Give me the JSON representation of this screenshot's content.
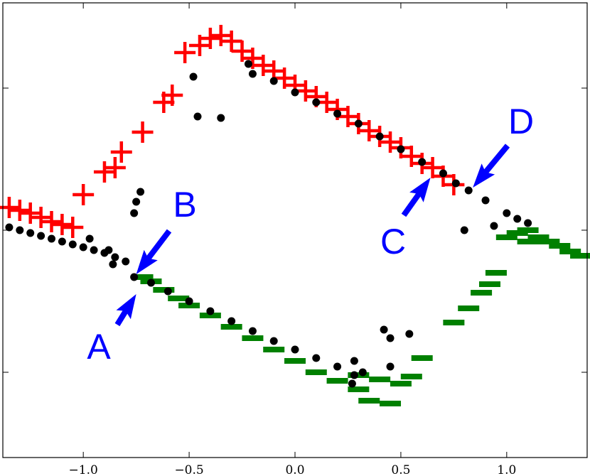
{
  "chart_data": {
    "type": "scatter",
    "title": "",
    "xlabel": "",
    "ylabel": "",
    "xlim": [
      -1.38,
      1.38
    ],
    "ylim": [
      -1.6,
      1.6
    ],
    "x_ticks": [
      {
        "value": -1.0,
        "label": "−1.0"
      },
      {
        "value": -0.5,
        "label": "−0.5"
      },
      {
        "value": 0.0,
        "label": "0.0"
      },
      {
        "value": 0.5,
        "label": "0.5"
      },
      {
        "value": 1.0,
        "label": "1.0"
      }
    ],
    "y_ticks": [
      -1.0,
      0.0,
      1.0
    ],
    "y_tick_labels_shown": false,
    "grid": false,
    "series": [
      {
        "marker": "circle",
        "color": "#000000",
        "points": [
          [
            -1.35,
            0.02
          ],
          [
            -1.3,
            0.0
          ],
          [
            -1.25,
            -0.02
          ],
          [
            -1.2,
            -0.04
          ],
          [
            -1.15,
            -0.06
          ],
          [
            -1.1,
            -0.08
          ],
          [
            -1.05,
            -0.1
          ],
          [
            -1.0,
            -0.12
          ],
          [
            -0.95,
            -0.14
          ],
          [
            -0.9,
            -0.16
          ],
          [
            -0.85,
            -0.19
          ],
          [
            -0.8,
            -0.22
          ],
          [
            -0.76,
            -0.33
          ],
          [
            -0.68,
            -0.37
          ],
          [
            -0.6,
            -0.43
          ],
          [
            -0.5,
            -0.5
          ],
          [
            -0.4,
            -0.57
          ],
          [
            -0.3,
            -0.64
          ],
          [
            -0.2,
            -0.71
          ],
          [
            -0.1,
            -0.78
          ],
          [
            0.0,
            -0.84
          ],
          [
            0.1,
            -0.9
          ],
          [
            0.2,
            -0.96
          ],
          [
            0.28,
            -1.02
          ],
          [
            0.32,
            -1.0
          ],
          [
            -0.97,
            -0.06
          ],
          [
            -0.88,
            -0.14
          ],
          [
            -0.86,
            -0.24
          ],
          [
            -0.76,
            0.12
          ],
          [
            -0.75,
            0.2
          ],
          [
            -0.73,
            0.27
          ],
          [
            -0.48,
            1.08
          ],
          [
            -0.46,
            0.8
          ],
          [
            -0.35,
            0.79
          ],
          [
            -0.22,
            1.17
          ],
          [
            -0.2,
            1.1
          ],
          [
            -0.1,
            1.05
          ],
          [
            0.0,
            0.97
          ],
          [
            0.1,
            0.9
          ],
          [
            0.2,
            0.82
          ],
          [
            0.3,
            0.75
          ],
          [
            0.4,
            0.66
          ],
          [
            0.5,
            0.57
          ],
          [
            0.6,
            0.48
          ],
          [
            0.7,
            0.4
          ],
          [
            0.76,
            0.33
          ],
          [
            0.82,
            0.28
          ],
          [
            0.9,
            0.21
          ],
          [
            1.0,
            0.12
          ],
          [
            1.05,
            0.08
          ],
          [
            1.1,
            0.05
          ],
          [
            0.94,
            0.03
          ],
          [
            0.8,
            0.0
          ],
          [
            0.28,
            -0.92
          ],
          [
            0.27,
            -1.08
          ],
          [
            0.42,
            -0.7
          ],
          [
            0.45,
            -0.76
          ],
          [
            0.54,
            -0.73
          ],
          [
            0.45,
            -0.96
          ]
        ]
      },
      {
        "marker": "plus",
        "color": "#ff0000",
        "points": [
          [
            -1.35,
            0.16
          ],
          [
            -1.3,
            0.14
          ],
          [
            -1.25,
            0.12
          ],
          [
            -1.2,
            0.09
          ],
          [
            -1.15,
            0.06
          ],
          [
            -1.1,
            0.04
          ],
          [
            -1.05,
            0.02
          ],
          [
            -1.0,
            0.25
          ],
          [
            -0.9,
            0.41
          ],
          [
            -0.85,
            0.44
          ],
          [
            -0.82,
            0.55
          ],
          [
            -0.72,
            0.69
          ],
          [
            -0.62,
            0.9
          ],
          [
            -0.58,
            0.95
          ],
          [
            -0.52,
            1.25
          ],
          [
            -0.45,
            1.3
          ],
          [
            -0.4,
            1.35
          ],
          [
            -0.35,
            1.37
          ],
          [
            -0.3,
            1.33
          ],
          [
            -0.25,
            1.26
          ],
          [
            -0.2,
            1.21
          ],
          [
            -0.15,
            1.16
          ],
          [
            -0.1,
            1.12
          ],
          [
            -0.05,
            1.07
          ],
          [
            0.0,
            1.02
          ],
          [
            0.05,
            0.98
          ],
          [
            0.1,
            0.94
          ],
          [
            0.15,
            0.9
          ],
          [
            0.2,
            0.85
          ],
          [
            0.25,
            0.8
          ],
          [
            0.3,
            0.75
          ],
          [
            0.35,
            0.7
          ],
          [
            0.4,
            0.66
          ],
          [
            0.45,
            0.62
          ],
          [
            0.5,
            0.58
          ],
          [
            0.55,
            0.52
          ],
          [
            0.6,
            0.47
          ],
          [
            0.65,
            0.44
          ],
          [
            0.7,
            0.38
          ],
          [
            0.75,
            0.32
          ]
        ]
      },
      {
        "marker": "dash",
        "color": "#008000",
        "points": [
          [
            -0.72,
            -0.33
          ],
          [
            -0.68,
            -0.36
          ],
          [
            -0.62,
            -0.42
          ],
          [
            -0.55,
            -0.48
          ],
          [
            -0.5,
            -0.53
          ],
          [
            -0.4,
            -0.6
          ],
          [
            -0.3,
            -0.68
          ],
          [
            -0.2,
            -0.76
          ],
          [
            -0.1,
            -0.84
          ],
          [
            0.0,
            -0.92
          ],
          [
            0.1,
            -1.0
          ],
          [
            0.2,
            -1.06
          ],
          [
            0.3,
            -1.12
          ],
          [
            0.35,
            -1.2
          ],
          [
            0.45,
            -1.22
          ],
          [
            0.3,
            -1.02
          ],
          [
            0.4,
            -1.05
          ],
          [
            0.5,
            -1.08
          ],
          [
            0.55,
            -1.03
          ],
          [
            0.6,
            -0.9
          ],
          [
            0.75,
            -0.65
          ],
          [
            0.82,
            -0.55
          ],
          [
            0.88,
            -0.44
          ],
          [
            0.92,
            -0.38
          ],
          [
            0.95,
            -0.3
          ],
          [
            1.0,
            -0.05
          ],
          [
            1.05,
            -0.02
          ],
          [
            1.1,
            0.0
          ],
          [
            1.15,
            -0.05
          ],
          [
            1.2,
            -0.08
          ],
          [
            1.25,
            -0.11
          ],
          [
            1.3,
            -0.15
          ],
          [
            1.35,
            -0.18
          ],
          [
            1.1,
            -0.08
          ]
        ]
      }
    ],
    "annotations": [
      {
        "label": "A",
        "x": -0.75,
        "y": -0.45
      },
      {
        "label": "B",
        "x": -0.75,
        "y": -0.31
      },
      {
        "label": "C",
        "x": 0.64,
        "y": 0.37
      },
      {
        "label": "D",
        "x": 0.84,
        "y": 0.3
      }
    ],
    "colors": {
      "annotation": "#0000ff"
    }
  }
}
